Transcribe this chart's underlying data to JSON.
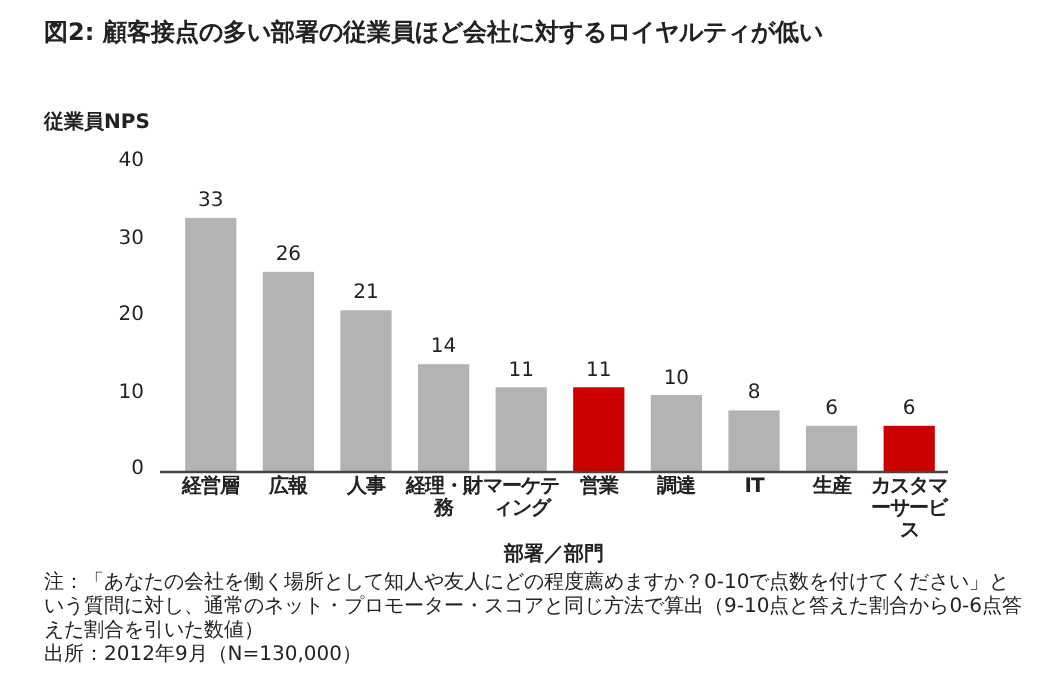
{
  "chart_data": {
    "type": "bar",
    "title": "図2: 顧客接点の多い部署の従業員ほど会社に対するロイヤルティが低い",
    "ylabel": "従業員NPS",
    "xlabel": "部署／部門",
    "categories": [
      "経営層",
      "広報",
      "人事",
      "経理・財務",
      "マーケティング",
      "営業",
      "調達",
      "IT",
      "生産",
      "カスタマーサービス"
    ],
    "values": [
      33,
      26,
      21,
      14,
      11,
      11,
      10,
      8,
      6,
      6
    ],
    "colors": [
      "#b3b3b3",
      "#b3b3b3",
      "#b3b3b3",
      "#b3b3b3",
      "#b3b3b3",
      "#cc0000",
      "#b3b3b3",
      "#b3b3b3",
      "#b3b3b3",
      "#cc0000"
    ],
    "ylim": [
      0,
      40
    ],
    "yticks": [
      0,
      10,
      20,
      30,
      40
    ],
    "data_labels": true,
    "grid": false,
    "annotations": [
      "注：「あなたの会社を働く場所として知人や友人にどの程度薦めますか？0-10で点数を付けてください」という質問に対し、通常のネット・プロモーター・スコアと同じ方法で算出（9-10点と答えた割合から0-6点答えた割合を引いた数値）",
      "出所：2012年9月（N=130,000）"
    ]
  }
}
